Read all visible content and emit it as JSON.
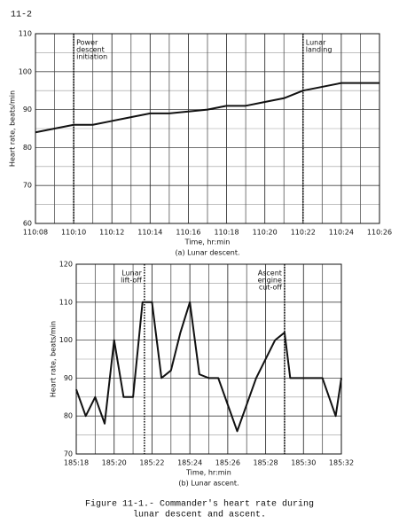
{
  "page_label": "11-2",
  "chart_data": [
    {
      "type": "line",
      "caption": "(a) Lunar descent.",
      "xlabel": "Time, hr:min",
      "ylabel": "Heart rate, beats/min",
      "x": [
        6608,
        6609,
        6610,
        6611,
        6612,
        6613,
        6614,
        6615,
        6616,
        6617,
        6618,
        6619,
        6620,
        6621,
        6622,
        6623,
        6624,
        6625,
        6626
      ],
      "series": [
        {
          "color": "#111111",
          "values": [
            84,
            85,
            86,
            86,
            87,
            88,
            89,
            89,
            89.5,
            90,
            91,
            91,
            92,
            93,
            95,
            96,
            97,
            97,
            97
          ]
        }
      ],
      "xlim": [
        6608,
        6626
      ],
      "ylim": [
        60,
        110
      ],
      "xticks": [
        {
          "value": 6608,
          "label": "110:08"
        },
        {
          "value": 6610,
          "label": "110:10"
        },
        {
          "value": 6612,
          "label": "110:12"
        },
        {
          "value": 6614,
          "label": "110:14"
        },
        {
          "value": 6616,
          "label": "110:16"
        },
        {
          "value": 6618,
          "label": "110:18"
        },
        {
          "value": 6620,
          "label": "110:20"
        },
        {
          "value": 6622,
          "label": "110:22"
        },
        {
          "value": 6624,
          "label": "110:24"
        },
        {
          "value": 6626,
          "label": "110:26"
        }
      ],
      "minor_xticks": [
        6609,
        6611,
        6613,
        6615,
        6617,
        6619,
        6621,
        6623,
        6625
      ],
      "yticks": [
        60,
        70,
        80,
        90,
        100,
        110
      ],
      "minor_yticks": [
        65,
        75,
        85,
        95,
        105
      ],
      "grid": true,
      "annotations": [
        {
          "x": 6610,
          "text": [
            "Power",
            "descent",
            "initiation"
          ]
        },
        {
          "x": 6622,
          "text": [
            "Lunar",
            "landing"
          ]
        }
      ]
    },
    {
      "type": "line",
      "caption": "(b) Lunar ascent.",
      "xlabel": "Time, hr:min",
      "ylabel": "Heart rate, beats/min",
      "x": [
        11118,
        11118.5,
        11119,
        11119.5,
        11120,
        11120.5,
        11121,
        11121.5,
        11122,
        11122.5,
        11123,
        11123.5,
        11124,
        11124.5,
        11125,
        11125.5,
        11126.5,
        11127.5,
        11128.5,
        11129,
        11129.3,
        11130,
        11131,
        11131.7,
        11132
      ],
      "series": [
        {
          "color": "#111111",
          "values": [
            87,
            80,
            85,
            78,
            100,
            85,
            85,
            110,
            110,
            90,
            92,
            102,
            110,
            91,
            90,
            90,
            76,
            90,
            100,
            102,
            90,
            90,
            90,
            80,
            90
          ]
        }
      ],
      "xlim": [
        11118,
        11132
      ],
      "ylim": [
        70,
        120
      ],
      "xticks": [
        {
          "value": 11118,
          "label": "185:18"
        },
        {
          "value": 11120,
          "label": "185:20"
        },
        {
          "value": 11122,
          "label": "185:22"
        },
        {
          "value": 11124,
          "label": "185:24"
        },
        {
          "value": 11126,
          "label": "185:26"
        },
        {
          "value": 11128,
          "label": "185:28"
        },
        {
          "value": 11130,
          "label": "185:30"
        },
        {
          "value": 11132,
          "label": "185:32"
        }
      ],
      "minor_xticks": [
        11119,
        11121,
        11123,
        11125,
        11127,
        11129,
        11131
      ],
      "yticks": [
        70,
        80,
        90,
        100,
        110,
        120
      ],
      "minor_yticks": [
        75,
        85,
        95,
        105,
        115
      ],
      "grid": true,
      "annotations": [
        {
          "x": 11121.6,
          "text": [
            "Lunar",
            "lift-off"
          ]
        },
        {
          "x": 11129,
          "text": [
            "Ascent",
            "engine",
            "cut-off"
          ]
        }
      ]
    }
  ],
  "caption": [
    "Figure 11-1.- Commander's heart rate during",
    "lunar descent and ascent."
  ]
}
